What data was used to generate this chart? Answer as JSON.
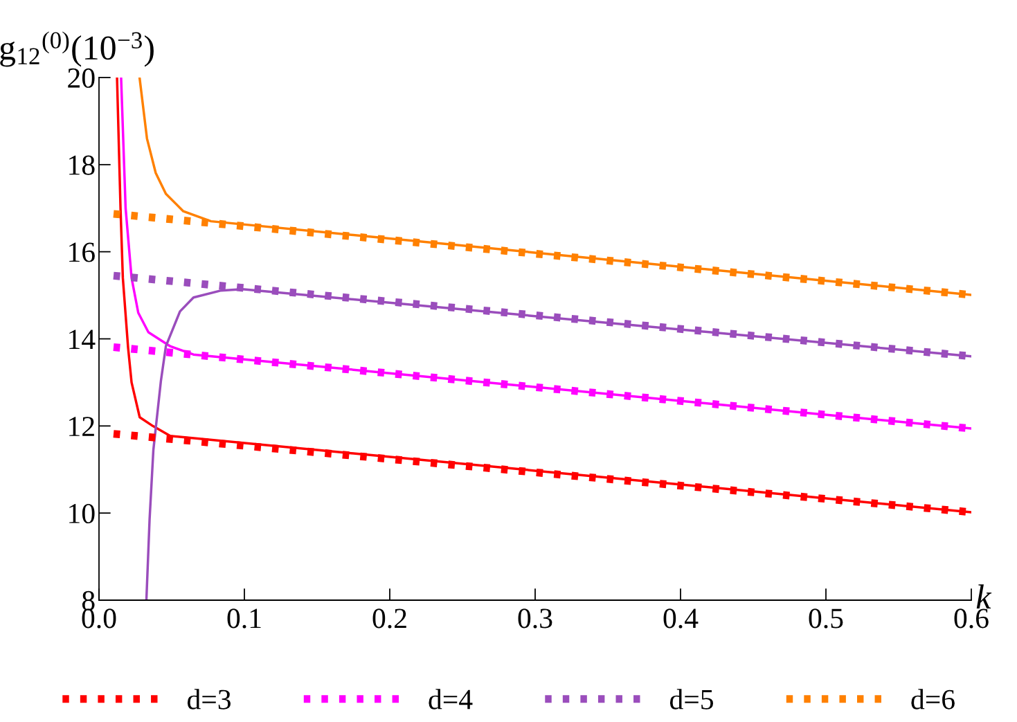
{
  "chart_data": {
    "type": "line",
    "xlabel": "k",
    "ylabel": "g$_{12}$$^{(0)}$(10$^{−3}$)",
    "xlim": [
      0,
      0.6
    ],
    "ylim": [
      8,
      20
    ],
    "xticks": [
      {
        "value": 0,
        "label": "0.0"
      },
      0.1,
      0.2,
      0.3,
      0.4,
      0.5,
      0.6
    ],
    "yticks": [
      8,
      10,
      12,
      14,
      16,
      18,
      20
    ],
    "grid": false,
    "legend": "bottom",
    "marker": "none",
    "series": [
      {
        "color": "#ff0000",
        "line_style": "solid",
        "x": [
          0.0124,
          0.0148,
          0.0164,
          0.02,
          0.0224,
          0.028,
          0.037,
          0.049,
          0.6
        ],
        "values": [
          20,
          17.0,
          15.4,
          13.8,
          13.0,
          12.2,
          12.0,
          11.77,
          10.02
        ]
      },
      {
        "color": "#ff00ff",
        "line_style": "solid",
        "x": [
          0.0152,
          0.0183,
          0.0224,
          0.027,
          0.034,
          0.049,
          0.065,
          0.6
        ],
        "values": [
          20,
          17.0,
          15.4,
          14.6,
          14.15,
          13.83,
          13.64,
          11.94
        ]
      },
      {
        "color": "#9a4dbc",
        "line_style": "solid",
        "x": [
          0.0326,
          0.0348,
          0.0374,
          0.0426,
          0.046,
          0.0557,
          0.065,
          0.084,
          0.0986,
          0.6
        ],
        "values": [
          8,
          9.86,
          11.45,
          13.04,
          13.83,
          14.63,
          14.95,
          15.11,
          15.14,
          13.6
        ]
      },
      {
        "color": "#ff8000",
        "line_style": "solid",
        "x": [
          0.0279,
          0.033,
          0.039,
          0.046,
          0.058,
          0.077,
          0.6
        ],
        "values": [
          20,
          18.6,
          17.81,
          17.33,
          16.93,
          16.7,
          15.01
        ]
      },
      {
        "name": "d=3",
        "color": "#ff0000",
        "line_style": "dotted",
        "x": [
          0.01,
          0.6
        ],
        "values": [
          11.82,
          10.02
        ]
      },
      {
        "name": "d=4",
        "color": "#ff00ff",
        "line_style": "dotted",
        "x": [
          0.01,
          0.6
        ],
        "values": [
          13.81,
          11.94
        ]
      },
      {
        "name": "d=5",
        "color": "#9a4dbc",
        "line_style": "dotted",
        "x": [
          0.01,
          0.6
        ],
        "values": [
          15.45,
          13.6
        ]
      },
      {
        "name": "d=6",
        "color": "#ff8000",
        "line_style": "dotted",
        "x": [
          0.01,
          0.6
        ],
        "values": [
          16.87,
          15.01
        ]
      }
    ]
  }
}
